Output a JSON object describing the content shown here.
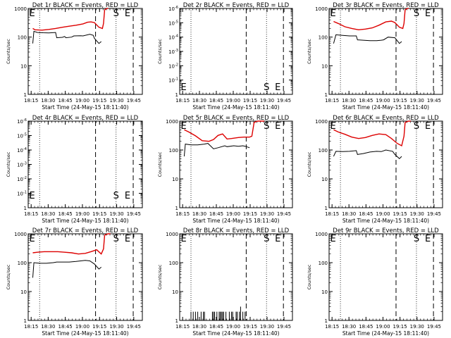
{
  "chart_data": [
    {
      "type": "line",
      "title": "Det 1r BLACK = Events, RED = LLD",
      "xlabel": "Start Time (24-May-15 18:11:40)",
      "ylabel": "Counts/sec",
      "xticks": [
        "18:15",
        "18:30",
        "18:45",
        "19:00",
        "19:15",
        "19:30",
        "19:45"
      ],
      "yscale": "log",
      "ylim": [
        1,
        1000
      ],
      "yticks": [
        "1",
        "10",
        "100",
        "1000"
      ],
      "markers": [
        "E",
        "S",
        "E"
      ],
      "series": [
        {
          "name": "Events",
          "color": "#000000",
          "points": [
            [
              0.04,
              60
            ],
            [
              0.05,
              160
            ],
            [
              0.08,
              145
            ],
            [
              0.13,
              142
            ],
            [
              0.18,
              140
            ],
            [
              0.24,
              145
            ],
            [
              0.25,
              95
            ],
            [
              0.3,
              98
            ],
            [
              0.32,
              105
            ],
            [
              0.33,
              95
            ],
            [
              0.38,
              100
            ],
            [
              0.4,
              110
            ],
            [
              0.46,
              112
            ],
            [
              0.48,
              110
            ],
            [
              0.54,
              125
            ],
            [
              0.57,
              115
            ],
            [
              0.58,
              90
            ],
            [
              0.62,
              60
            ],
            [
              0.64,
              70
            ]
          ]
        },
        {
          "name": "LLD",
          "color": "#dd0000",
          "points": [
            [
              0.04,
              200
            ],
            [
              0.06,
              180
            ],
            [
              0.12,
              175
            ],
            [
              0.18,
              185
            ],
            [
              0.24,
              200
            ],
            [
              0.3,
              220
            ],
            [
              0.36,
              240
            ],
            [
              0.42,
              260
            ],
            [
              0.48,
              290
            ],
            [
              0.52,
              330
            ],
            [
              0.55,
              340
            ],
            [
              0.58,
              320
            ],
            [
              0.62,
              220
            ],
            [
              0.65,
              200
            ],
            [
              0.66,
              300
            ],
            [
              0.67,
              900
            ],
            [
              0.69,
              1000
            ],
            [
              0.7,
              1000
            ]
          ]
        }
      ]
    },
    {
      "type": "line",
      "title": "Det 2r BLACK = Events, RED = LLD",
      "xlabel": "Start Time (24-May-15 18:11:40)",
      "ylabel": "Counts/sec",
      "xticks": [
        "18:15",
        "18:30",
        "18:45",
        "19:00",
        "19:15",
        "19:30",
        "19:45"
      ],
      "yscale": "log",
      "ylim": [
        1,
        1e-06
      ],
      "yticks": [
        "1",
        "10^-1",
        "10^-2",
        "10^-3",
        "10^-4",
        "10^-5",
        "10^-6"
      ],
      "markers": [
        "E",
        "S",
        "E"
      ],
      "series": []
    },
    {
      "type": "line",
      "title": "Det 3r BLACK = Events, RED = LLD",
      "xlabel": "Start Time (24-May-15 18:11:40)",
      "ylabel": "Counts/sec",
      "xticks": [
        "18:15",
        "18:30",
        "18:45",
        "19:00",
        "19:15",
        "19:30",
        "19:45"
      ],
      "yscale": "log",
      "ylim": [
        1,
        1000
      ],
      "yticks": [
        "1",
        "10",
        "100",
        "1000"
      ],
      "markers": [
        "E",
        "S",
        "E"
      ],
      "series": [
        {
          "name": "Events",
          "color": "#000000",
          "points": [
            [
              0.04,
              60
            ],
            [
              0.06,
              120
            ],
            [
              0.12,
              115
            ],
            [
              0.18,
              110
            ],
            [
              0.24,
              110
            ],
            [
              0.25,
              80
            ],
            [
              0.3,
              78
            ],
            [
              0.36,
              75
            ],
            [
              0.42,
              75
            ],
            [
              0.46,
              78
            ],
            [
              0.48,
              80
            ],
            [
              0.52,
              100
            ],
            [
              0.58,
              95
            ],
            [
              0.62,
              60
            ],
            [
              0.64,
              70
            ]
          ]
        },
        {
          "name": "LLD",
          "color": "#dd0000",
          "points": [
            [
              0.04,
              350
            ],
            [
              0.08,
              300
            ],
            [
              0.14,
              230
            ],
            [
              0.2,
              200
            ],
            [
              0.26,
              180
            ],
            [
              0.32,
              190
            ],
            [
              0.38,
              210
            ],
            [
              0.44,
              260
            ],
            [
              0.5,
              340
            ],
            [
              0.55,
              360
            ],
            [
              0.58,
              320
            ],
            [
              0.62,
              220
            ],
            [
              0.65,
              200
            ],
            [
              0.66,
              300
            ],
            [
              0.67,
              900
            ],
            [
              0.69,
              1000
            ],
            [
              0.7,
              1000
            ]
          ]
        }
      ]
    },
    {
      "type": "line",
      "title": "Det 4r BLACK = Events, RED = LLD",
      "xlabel": "Start Time (24-May-15 18:11:40)",
      "ylabel": "Counts/sec",
      "xticks": [
        "18:15",
        "18:30",
        "18:45",
        "19:00",
        "19:15",
        "19:30",
        "19:45"
      ],
      "yscale": "log",
      "ylim": [
        1,
        1e-06
      ],
      "yticks": [
        "1",
        "10^-1",
        "10^-2",
        "10^-3",
        "10^-4",
        "10^-5",
        "10^-6"
      ],
      "markers": [
        "E",
        "S",
        "E"
      ],
      "series": []
    },
    {
      "type": "line",
      "title": "Det 5r BLACK = Events, RED = LLD",
      "xlabel": "Start Time (24-May-15 18:11:40)",
      "ylabel": "Counts/sec",
      "xticks": [
        "18:15",
        "18:30",
        "18:45",
        "19:00",
        "19:15",
        "19:30",
        "19:45"
      ],
      "yscale": "log",
      "ylim": [
        1,
        1000
      ],
      "yticks": [
        "1",
        "10",
        "100",
        "1000"
      ],
      "markers": [
        "E",
        "S",
        "E"
      ],
      "series": [
        {
          "name": "Events",
          "color": "#000000",
          "points": [
            [
              0.04,
              60
            ],
            [
              0.05,
              160
            ],
            [
              0.1,
              150
            ],
            [
              0.16,
              150
            ],
            [
              0.22,
              160
            ],
            [
              0.25,
              170
            ],
            [
              0.3,
              110
            ],
            [
              0.34,
              120
            ],
            [
              0.4,
              140
            ],
            [
              0.42,
              130
            ],
            [
              0.48,
              140
            ],
            [
              0.52,
              135
            ],
            [
              0.56,
              140
            ],
            [
              0.58,
              135
            ],
            [
              0.62,
              120
            ]
          ]
        },
        {
          "name": "LLD",
          "color": "#dd0000",
          "points": [
            [
              0.04,
              500
            ],
            [
              0.08,
              420
            ],
            [
              0.14,
              310
            ],
            [
              0.2,
              210
            ],
            [
              0.26,
              200
            ],
            [
              0.3,
              230
            ],
            [
              0.34,
              320
            ],
            [
              0.38,
              360
            ],
            [
              0.42,
              240
            ],
            [
              0.46,
              250
            ],
            [
              0.52,
              270
            ],
            [
              0.57,
              280
            ],
            [
              0.62,
              280
            ],
            [
              0.64,
              300
            ],
            [
              0.66,
              900
            ],
            [
              0.69,
              1000
            ],
            [
              0.72,
              1000
            ],
            [
              0.75,
              1000
            ]
          ]
        }
      ]
    },
    {
      "type": "line",
      "title": "Det 6r BLACK = Events, RED = LLD",
      "xlabel": "Start Time (24-May-15 18:11:40)",
      "ylabel": "Counts/sec",
      "xticks": [
        "18:15",
        "18:30",
        "18:45",
        "19:00",
        "19:15",
        "19:30",
        "19:45"
      ],
      "yscale": "log",
      "ylim": [
        1,
        1000
      ],
      "yticks": [
        "1",
        "10",
        "100",
        "1000"
      ],
      "markers": [
        "E",
        "S",
        "E"
      ],
      "series": [
        {
          "name": "Events",
          "color": "#000000",
          "points": [
            [
              0.04,
              60
            ],
            [
              0.06,
              90
            ],
            [
              0.12,
              88
            ],
            [
              0.18,
              90
            ],
            [
              0.24,
              95
            ],
            [
              0.25,
              70
            ],
            [
              0.3,
              75
            ],
            [
              0.36,
              85
            ],
            [
              0.42,
              90
            ],
            [
              0.46,
              88
            ],
            [
              0.5,
              100
            ],
            [
              0.56,
              90
            ],
            [
              0.58,
              70
            ],
            [
              0.62,
              50
            ],
            [
              0.64,
              60
            ]
          ]
        },
        {
          "name": "LLD",
          "color": "#dd0000",
          "points": [
            [
              0.04,
              500
            ],
            [
              0.08,
              420
            ],
            [
              0.14,
              350
            ],
            [
              0.2,
              280
            ],
            [
              0.26,
              250
            ],
            [
              0.32,
              270
            ],
            [
              0.38,
              320
            ],
            [
              0.44,
              360
            ],
            [
              0.5,
              340
            ],
            [
              0.55,
              250
            ],
            [
              0.6,
              170
            ],
            [
              0.64,
              140
            ],
            [
              0.66,
              300
            ],
            [
              0.67,
              900
            ],
            [
              0.7,
              1000
            ],
            [
              0.72,
              1000
            ]
          ]
        }
      ]
    },
    {
      "type": "line",
      "title": "Det 7r BLACK = Events, RED = LLD",
      "xlabel": "Start Time (24-May-15 18:11:40)",
      "ylabel": "Counts/sec",
      "xticks": [
        "18:15",
        "18:30",
        "18:45",
        "19:00",
        "19:15",
        "19:30",
        "19:45"
      ],
      "yscale": "log",
      "ylim": [
        1,
        1000
      ],
      "yticks": [
        "1",
        "10",
        "100",
        "1000"
      ],
      "markers": [
        "E",
        "S",
        "E"
      ],
      "series": [
        {
          "name": "Events",
          "color": "#000000",
          "points": [
            [
              0.04,
              30
            ],
            [
              0.05,
              100
            ],
            [
              0.1,
              95
            ],
            [
              0.16,
              95
            ],
            [
              0.22,
              100
            ],
            [
              0.25,
              105
            ],
            [
              0.3,
              105
            ],
            [
              0.36,
              105
            ],
            [
              0.42,
              110
            ],
            [
              0.46,
              115
            ],
            [
              0.5,
              120
            ],
            [
              0.54,
              115
            ],
            [
              0.58,
              90
            ],
            [
              0.62,
              60
            ],
            [
              0.64,
              70
            ]
          ]
        },
        {
          "name": "LLD",
          "color": "#dd0000",
          "points": [
            [
              0.04,
              220
            ],
            [
              0.08,
              230
            ],
            [
              0.14,
              240
            ],
            [
              0.2,
              240
            ],
            [
              0.26,
              240
            ],
            [
              0.32,
              230
            ],
            [
              0.38,
              220
            ],
            [
              0.44,
              200
            ],
            [
              0.5,
              210
            ],
            [
              0.55,
              240
            ],
            [
              0.6,
              280
            ],
            [
              0.64,
              200
            ],
            [
              0.66,
              300
            ],
            [
              0.67,
              900
            ],
            [
              0.7,
              1000
            ],
            [
              0.72,
              1000
            ]
          ]
        }
      ]
    },
    {
      "type": "line",
      "title": "Det 8r BLACK = Events, RED = LLD",
      "xlabel": "Start Time (24-May-15 18:11:40)",
      "ylabel": "Counts/sec",
      "xticks": [
        "18:15",
        "18:30",
        "18:45",
        "19:00",
        "19:15",
        "19:30",
        "19:45"
      ],
      "yscale": "log",
      "ylim": [
        1,
        1000
      ],
      "yticks": [
        "1",
        "10",
        "100",
        "1000"
      ],
      "markers": [
        "E",
        "S",
        "E"
      ],
      "series": [
        {
          "name": "Events",
          "color": "#000000",
          "spikes": [
            [
              0.1,
              2
            ],
            [
              0.12,
              2
            ],
            [
              0.14,
              2
            ],
            [
              0.16,
              2
            ],
            [
              0.19,
              2
            ],
            [
              0.21,
              2
            ],
            [
              0.22,
              2
            ],
            [
              0.29,
              2
            ],
            [
              0.3,
              2
            ],
            [
              0.31,
              2
            ],
            [
              0.33,
              2
            ],
            [
              0.35,
              2
            ],
            [
              0.36,
              2
            ],
            [
              0.37,
              2
            ],
            [
              0.38,
              2
            ],
            [
              0.39,
              2
            ],
            [
              0.41,
              2
            ],
            [
              0.44,
              2
            ],
            [
              0.46,
              2
            ],
            [
              0.47,
              2
            ],
            [
              0.5,
              2
            ],
            [
              0.51,
              2
            ],
            [
              0.53,
              2
            ],
            [
              0.54,
              3
            ],
            [
              0.56,
              2
            ],
            [
              0.58,
              2
            ]
          ]
        }
      ]
    },
    {
      "type": "line",
      "title": "Det 9r BLACK = Events, RED = LLD",
      "xlabel": "Start Time (24-May-15 18:11:40)",
      "ylabel": "Counts/sec",
      "xticks": [
        "18:15",
        "18:30",
        "18:45",
        "19:00",
        "19:15",
        "19:30",
        "19:45"
      ],
      "yscale": "log",
      "ylim": [
        1,
        1000
      ],
      "yticks": [
        "1",
        "10",
        "100",
        "1000"
      ],
      "markers": [
        "E",
        "S",
        "E"
      ],
      "series": []
    }
  ]
}
